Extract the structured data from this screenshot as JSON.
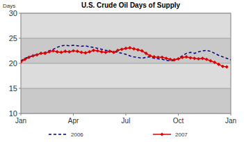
{
  "chart_data": {
    "type": "line",
    "title": "U.S. Crude Oil Days of Supply",
    "y_label": "Days",
    "categories": [
      "Jan",
      null,
      null,
      null,
      null,
      null,
      null,
      null,
      null,
      null,
      null,
      null,
      null,
      "Apr",
      null,
      null,
      null,
      null,
      null,
      null,
      null,
      null,
      null,
      null,
      null,
      null,
      "Jul",
      null,
      null,
      null,
      null,
      null,
      null,
      null,
      null,
      null,
      null,
      null,
      null,
      "Oct",
      null,
      null,
      null,
      null,
      null,
      null,
      null,
      null,
      null,
      null,
      null,
      null,
      "Jan"
    ],
    "series": [
      {
        "name": "2006",
        "color": "#000080",
        "marker": "none",
        "line_style": "dashed",
        "values": [
          20.5,
          21.0,
          21.3,
          21.5,
          21.8,
          22.0,
          22.2,
          22.5,
          22.8,
          23.2,
          23.5,
          23.6,
          23.5,
          23.6,
          23.5,
          23.4,
          23.5,
          23.3,
          23.2,
          23.0,
          22.8,
          22.6,
          22.5,
          22.3,
          22.2,
          22.0,
          21.8,
          21.5,
          21.3,
          21.2,
          21.0,
          21.2,
          21.3,
          21.0,
          20.9,
          20.8,
          20.6,
          20.5,
          20.6,
          21.0,
          21.5,
          22.0,
          22.2,
          22.0,
          22.3,
          22.5,
          22.6,
          22.4,
          22.0,
          21.6,
          21.3,
          21.0,
          20.7
        ]
      },
      {
        "name": "2007",
        "color": "#e00000",
        "marker": "diamond",
        "line_style": "solid",
        "values": [
          20.3,
          20.8,
          21.2,
          21.5,
          21.7,
          22.0,
          22.0,
          22.3,
          22.5,
          22.3,
          22.2,
          22.4,
          22.3,
          22.5,
          22.4,
          22.2,
          22.1,
          22.3,
          22.6,
          22.5,
          22.3,
          22.2,
          22.4,
          22.2,
          22.6,
          22.8,
          23.0,
          23.1,
          22.9,
          22.7,
          22.5,
          22.0,
          21.5,
          21.3,
          21.2,
          21.2,
          21.0,
          20.8,
          20.7,
          20.9,
          21.2,
          21.3,
          21.1,
          21.0,
          20.9,
          21.0,
          20.8,
          20.5,
          20.2,
          19.8,
          19.4,
          19.3,
          null
        ]
      }
    ],
    "ylim": [
      10,
      30
    ],
    "yticks": [
      10,
      15,
      20,
      25,
      30
    ],
    "grid": true,
    "legend": "bottom"
  }
}
